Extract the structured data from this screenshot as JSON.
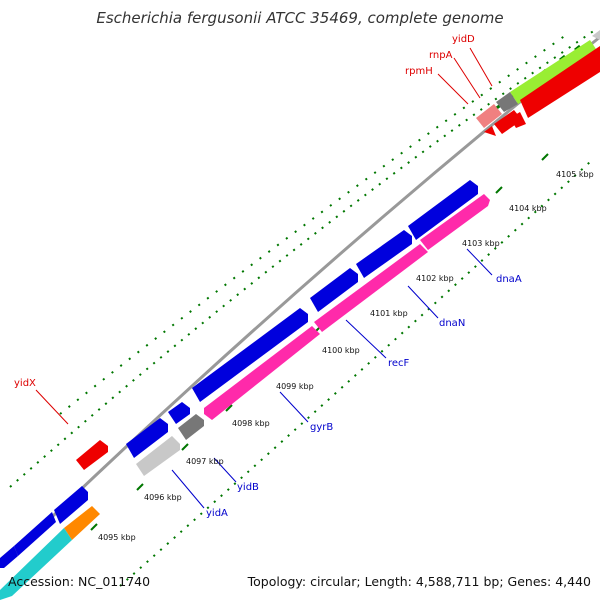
{
  "header": {
    "title": "Escherichia fergusonii ATCC 35469, complete genome"
  },
  "footer": {
    "accession": "Accession: NC_011740",
    "summary": "Topology: circular; Length: 4,588,711 bp; Genes: 4,440"
  },
  "colors": {
    "forward_gene": "#0000dd",
    "reverse_gene": "#ff2aaa",
    "rna_red": "#ee0000",
    "rna_pink": "#f08080",
    "green": "#99ee33",
    "cyan": "#22cccc",
    "orange": "#ff8800",
    "gray": "#777777",
    "light_gray": "#c8c8c8",
    "label_blue": "#0000cc",
    "label_red": "#dd0000",
    "backbone": "#999999",
    "ticks": "#007700"
  },
  "kbp_ticks": [
    "4095 kbp",
    "4096 kbp",
    "4097 kbp",
    "4098 kbp",
    "4099 kbp",
    "4100 kbp",
    "4101 kbp",
    "4102 kbp",
    "4103 kbp",
    "4104 kbp",
    "4105 kbp"
  ],
  "gene_labels_forward": [
    "dnaA",
    "dnaN",
    "recF",
    "gyrB",
    "yidB",
    "yidA"
  ],
  "gene_labels_other": [
    "yidD",
    "rnpA",
    "rpmH",
    "yidX"
  ]
}
